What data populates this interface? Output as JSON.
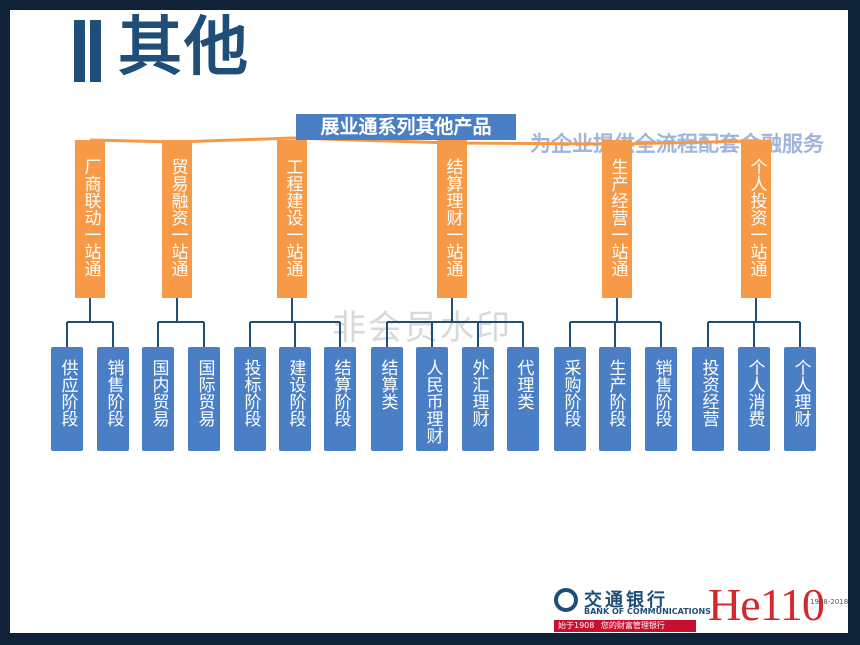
{
  "slide": {
    "title": "其他",
    "header": "展业通系列其他产品",
    "subtitle": "为企业提供全流程配套金融服务",
    "watermark": "非会员水印"
  },
  "categories": [
    {
      "label": "厂商联动一站通",
      "children": [
        "供应阶段",
        "销售阶段"
      ]
    },
    {
      "label": "贸易融资一站通",
      "children": [
        "国内贸易",
        "国际贸易"
      ]
    },
    {
      "label": "工程建设一站通",
      "children": [
        "投标阶段",
        "建设阶段",
        "结算阶段"
      ]
    },
    {
      "label": "结算理财一站通",
      "children": [
        "结算类",
        "人民币理财",
        "外汇理财",
        "代理类"
      ]
    },
    {
      "label": "生产经营一站通",
      "children": [
        "采购阶段",
        "生产阶段",
        "销售阶段"
      ]
    },
    {
      "label": "个人投资一站通",
      "children": [
        "投资经营",
        "个人消费",
        "个人理财"
      ]
    }
  ],
  "footer": {
    "bank_cn": "交通银行",
    "bank_en": "BANK OF COMMUNICATIONS",
    "since": "始于1908",
    "slogan": "您的财富管理银行",
    "hello": "He110",
    "years": "1908-2018"
  },
  "colors": {
    "blue": "#4a7fc6",
    "orange": "#f79a47",
    "title": "#1f4e79",
    "line": "#1f4e79"
  }
}
